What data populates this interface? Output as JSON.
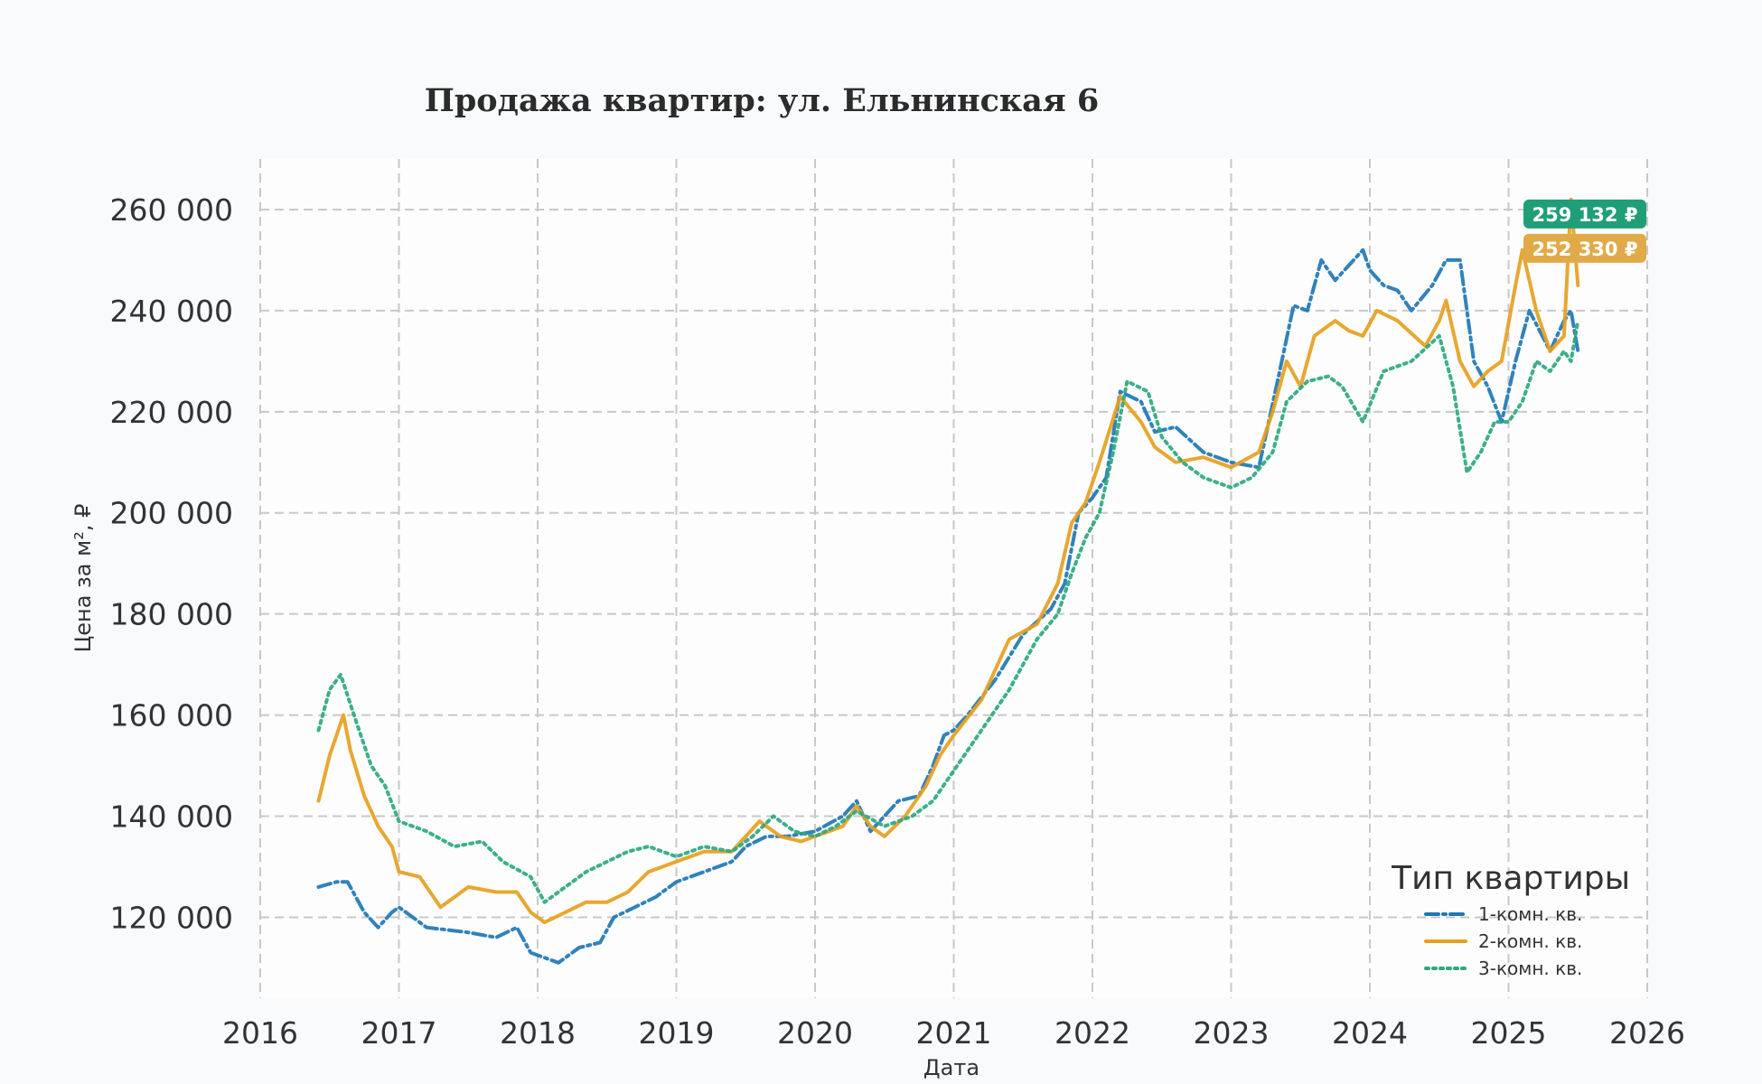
{
  "chart_data": {
    "type": "line",
    "title": "Продажа квартир: ул. Ельнинская 6",
    "xlabel": "Дата",
    "ylabel": "Цена за м², ₽",
    "xlim": [
      2016.0,
      2026.0
    ],
    "ylim": [
      104000,
      270000
    ],
    "x_ticks": [
      "2016",
      "2017",
      "2018",
      "2019",
      "2020",
      "2021",
      "2022",
      "2023",
      "2024",
      "2025",
      "2026"
    ],
    "y_ticks": [
      {
        "value": 120000,
        "label": "120 000"
      },
      {
        "value": 140000,
        "label": "140 000"
      },
      {
        "value": 160000,
        "label": "160 000"
      },
      {
        "value": 180000,
        "label": "180 000"
      },
      {
        "value": 200000,
        "label": "200 000"
      },
      {
        "value": 220000,
        "label": "220 000"
      },
      {
        "value": 240000,
        "label": "240 000"
      },
      {
        "value": 260000,
        "label": "260 000"
      }
    ],
    "grid": true,
    "legend": {
      "title": "Тип квартиры",
      "position": "bottom-right"
    },
    "series": [
      {
        "name": "1-комн. кв.",
        "color": "#1f77b4",
        "style": "dashdot",
        "x": [
          2016.42,
          2016.55,
          2016.63,
          2016.75,
          2016.85,
          2016.95,
          2017.0,
          2017.2,
          2017.5,
          2017.7,
          2017.85,
          2017.95,
          2018.05,
          2018.15,
          2018.3,
          2018.45,
          2018.55,
          2018.7,
          2018.85,
          2019.0,
          2019.2,
          2019.4,
          2019.5,
          2019.65,
          2019.8,
          2020.0,
          2020.2,
          2020.3,
          2020.4,
          2020.5,
          2020.6,
          2020.75,
          2020.85,
          2020.93,
          2021.0,
          2021.1,
          2021.3,
          2021.5,
          2021.7,
          2021.8,
          2021.9,
          2022.0,
          2022.1,
          2022.2,
          2022.35,
          2022.45,
          2022.6,
          2022.8,
          2023.0,
          2023.2,
          2023.35,
          2023.45,
          2023.55,
          2023.65,
          2023.75,
          2023.85,
          2023.95,
          2024.0,
          2024.1,
          2024.2,
          2024.3,
          2024.45,
          2024.55,
          2024.65,
          2024.75,
          2024.85,
          2024.95,
          2025.05,
          2025.15,
          2025.3,
          2025.4,
          2025.45,
          2025.5
        ],
        "values": [
          126000,
          127000,
          127000,
          121000,
          118000,
          121000,
          122000,
          118000,
          117000,
          116000,
          118000,
          113000,
          112000,
          111000,
          114000,
          115000,
          120000,
          122000,
          124000,
          127000,
          129000,
          131000,
          134000,
          136000,
          136000,
          137000,
          140000,
          143000,
          137000,
          140000,
          143000,
          144000,
          150000,
          156000,
          157000,
          160000,
          167000,
          176000,
          181000,
          186000,
          200000,
          203000,
          207000,
          224000,
          222000,
          216000,
          217000,
          212000,
          210000,
          209000,
          228000,
          241000,
          240000,
          250000,
          246000,
          249000,
          252000,
          248000,
          245000,
          244000,
          240000,
          245000,
          250000,
          250000,
          230000,
          225000,
          218000,
          230000,
          240000,
          232000,
          238000,
          240000,
          232000
        ]
      },
      {
        "name": "2-комн. кв.",
        "color": "#e6a020",
        "style": "solid",
        "x": [
          2016.42,
          2016.5,
          2016.6,
          2016.65,
          2016.75,
          2016.85,
          2016.95,
          2017.0,
          2017.15,
          2017.3,
          2017.5,
          2017.7,
          2017.85,
          2017.95,
          2018.05,
          2018.2,
          2018.35,
          2018.5,
          2018.65,
          2018.8,
          2019.0,
          2019.2,
          2019.4,
          2019.5,
          2019.6,
          2019.75,
          2019.9,
          2020.0,
          2020.2,
          2020.3,
          2020.4,
          2020.5,
          2020.65,
          2020.8,
          2020.9,
          2021.0,
          2021.2,
          2021.4,
          2021.6,
          2021.75,
          2021.85,
          2021.95,
          2022.05,
          2022.2,
          2022.35,
          2022.45,
          2022.6,
          2022.8,
          2023.0,
          2023.2,
          2023.3,
          2023.4,
          2023.5,
          2023.6,
          2023.75,
          2023.85,
          2023.95,
          2024.05,
          2024.2,
          2024.4,
          2024.5,
          2024.55,
          2024.65,
          2024.75,
          2024.85,
          2024.95,
          2025.05,
          2025.1,
          2025.2,
          2025.3,
          2025.4,
          2025.45,
          2025.5
        ],
        "values": [
          143000,
          152000,
          160000,
          153000,
          144000,
          138000,
          134000,
          129000,
          128000,
          122000,
          126000,
          125000,
          125000,
          121000,
          119000,
          121000,
          123000,
          123000,
          125000,
          129000,
          131000,
          133000,
          133000,
          136000,
          139000,
          136000,
          135000,
          136000,
          138000,
          142000,
          138000,
          136000,
          140000,
          146000,
          152000,
          156000,
          163000,
          175000,
          178000,
          186000,
          198000,
          202000,
          210000,
          223000,
          218000,
          213000,
          210000,
          211000,
          209000,
          212000,
          220000,
          230000,
          225000,
          235000,
          238000,
          236000,
          235000,
          240000,
          238000,
          233000,
          238000,
          242000,
          230000,
          225000,
          228000,
          230000,
          245000,
          252000,
          240000,
          232000,
          235000,
          262000,
          245000
        ]
      },
      {
        "name": "3-комн. кв.",
        "color": "#2ca87f",
        "style": "dotted",
        "x": [
          2016.42,
          2016.5,
          2016.58,
          2016.7,
          2016.8,
          2016.9,
          2017.0,
          2017.2,
          2017.4,
          2017.6,
          2017.75,
          2017.95,
          2018.05,
          2018.2,
          2018.35,
          2018.5,
          2018.65,
          2018.8,
          2019.0,
          2019.2,
          2019.4,
          2019.55,
          2019.7,
          2019.85,
          2020.0,
          2020.15,
          2020.3,
          2020.5,
          2020.7,
          2020.85,
          2021.0,
          2021.2,
          2021.4,
          2021.6,
          2021.75,
          2021.85,
          2021.95,
          2022.05,
          2022.15,
          2022.25,
          2022.4,
          2022.5,
          2022.65,
          2022.8,
          2023.0,
          2023.15,
          2023.3,
          2023.4,
          2023.55,
          2023.7,
          2023.8,
          2023.95,
          2024.1,
          2024.3,
          2024.5,
          2024.6,
          2024.7,
          2024.8,
          2024.9,
          2025.0,
          2025.1,
          2025.2,
          2025.3,
          2025.4,
          2025.45,
          2025.5
        ],
        "values": [
          157000,
          165000,
          168000,
          158000,
          150000,
          146000,
          139000,
          137000,
          134000,
          135000,
          131000,
          128000,
          123000,
          126000,
          129000,
          131000,
          133000,
          134000,
          132000,
          134000,
          133000,
          136000,
          140000,
          137000,
          136000,
          138000,
          141000,
          138000,
          140000,
          143000,
          149000,
          157000,
          165000,
          175000,
          180000,
          188000,
          195000,
          200000,
          212000,
          226000,
          224000,
          215000,
          210000,
          207000,
          205000,
          207000,
          212000,
          222000,
          226000,
          227000,
          225000,
          218000,
          228000,
          230000,
          235000,
          225000,
          208000,
          212000,
          218000,
          218000,
          222000,
          230000,
          228000,
          232000,
          230000,
          238000
        ]
      }
    ],
    "annotations": [
      {
        "text": "259 132 ₽",
        "color": "#1f9e77",
        "value": 259132
      },
      {
        "text": "252 330 ₽",
        "color": "#e0aa48",
        "value": 252330
      }
    ]
  }
}
